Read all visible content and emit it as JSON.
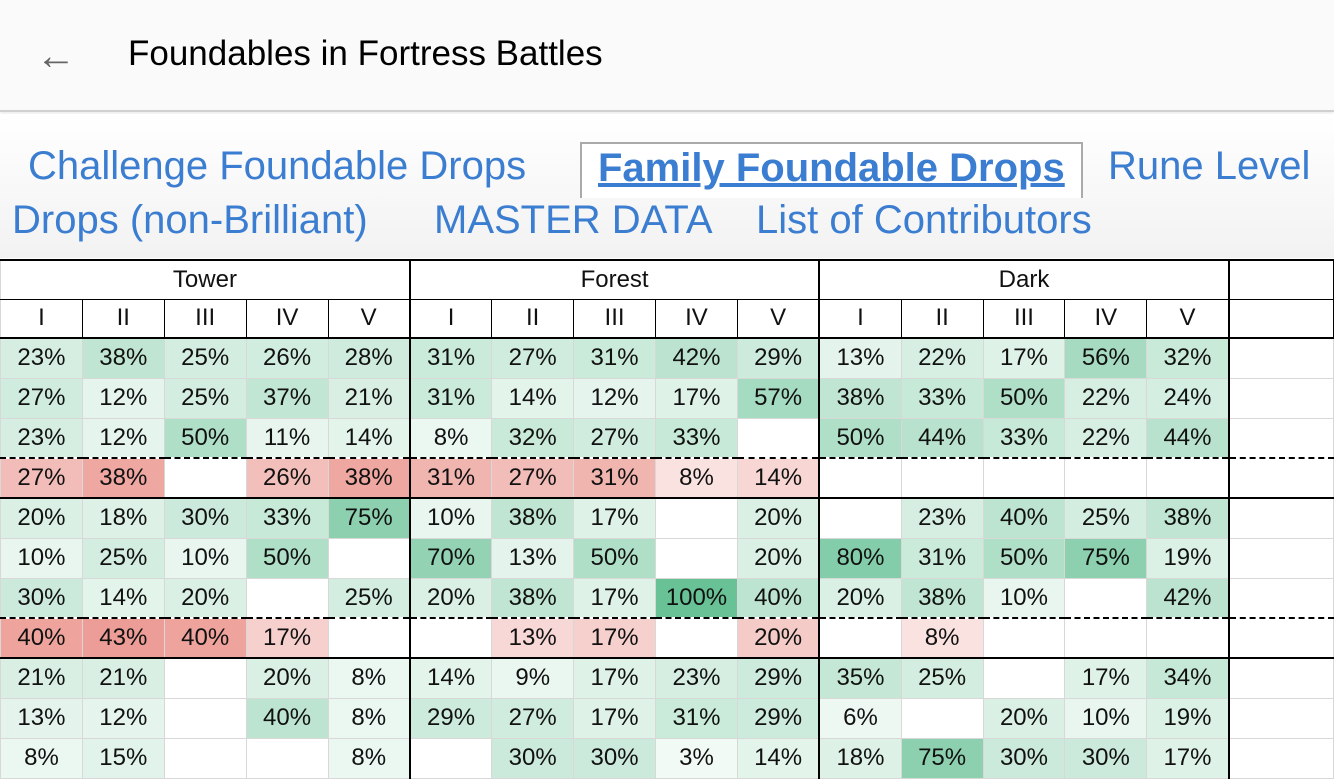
{
  "appbar": {
    "title": "Foundables in Fortress Battles",
    "back_icon": "arrow-left"
  },
  "tabs": [
    "Challenge Foundable Drops",
    "Family Foundable Drops",
    "Rune Level",
    "Drops (non-Brilliant)",
    "MASTER DATA",
    "List of Contributors"
  ],
  "active_tab": "Family Foundable Drops",
  "colors": {
    "green": "#57bb8a",
    "red": "#e67c73",
    "link": "#3b7dd0"
  },
  "table": {
    "groups": [
      "Tower",
      "Forest",
      "Dark"
    ],
    "levels": [
      "I",
      "II",
      "III",
      "IV",
      "V"
    ],
    "rows": [
      {
        "tone": "green",
        "border": "solid",
        "cells": [
          "23%",
          "38%",
          "25%",
          "26%",
          "28%",
          "31%",
          "27%",
          "31%",
          "42%",
          "29%",
          "13%",
          "22%",
          "17%",
          "56%",
          "32%"
        ]
      },
      {
        "tone": "green",
        "border": "none",
        "cells": [
          "27%",
          "12%",
          "25%",
          "37%",
          "21%",
          "31%",
          "14%",
          "12%",
          "17%",
          "57%",
          "38%",
          "33%",
          "50%",
          "22%",
          "24%"
        ]
      },
      {
        "tone": "green",
        "border": "none",
        "cells": [
          "23%",
          "12%",
          "50%",
          "11%",
          "14%",
          "8%",
          "32%",
          "27%",
          "33%",
          "",
          "50%",
          "44%",
          "33%",
          "22%",
          "44%"
        ]
      },
      {
        "tone": "red",
        "border": "dash",
        "cells": [
          "27%",
          "38%",
          "",
          "26%",
          "38%",
          "31%",
          "27%",
          "31%",
          "8%",
          "14%",
          "",
          "",
          "",
          "",
          ""
        ]
      },
      {
        "tone": "green",
        "border": "solid",
        "cells": [
          "20%",
          "18%",
          "30%",
          "33%",
          "75%",
          "10%",
          "38%",
          "17%",
          "",
          "20%",
          "",
          "23%",
          "40%",
          "25%",
          "38%"
        ]
      },
      {
        "tone": "green",
        "border": "none",
        "cells": [
          "10%",
          "25%",
          "10%",
          "50%",
          "",
          "70%",
          "13%",
          "50%",
          "",
          "20%",
          "80%",
          "31%",
          "50%",
          "75%",
          "19%"
        ]
      },
      {
        "tone": "green",
        "border": "none",
        "cells": [
          "30%",
          "14%",
          "20%",
          "",
          "25%",
          "20%",
          "38%",
          "17%",
          "100%",
          "40%",
          "20%",
          "38%",
          "10%",
          "",
          "42%"
        ]
      },
      {
        "tone": "red",
        "border": "dash",
        "cells": [
          "40%",
          "43%",
          "40%",
          "17%",
          "",
          "",
          "13%",
          "17%",
          "",
          "20%",
          "",
          "8%",
          "",
          "",
          ""
        ]
      },
      {
        "tone": "green",
        "border": "solid",
        "cells": [
          "21%",
          "21%",
          "",
          "20%",
          "8%",
          "14%",
          "9%",
          "17%",
          "23%",
          "29%",
          "35%",
          "25%",
          "",
          "17%",
          "34%"
        ]
      },
      {
        "tone": "green",
        "border": "none",
        "cells": [
          "13%",
          "12%",
          "",
          "40%",
          "8%",
          "29%",
          "27%",
          "17%",
          "31%",
          "29%",
          "6%",
          "",
          "20%",
          "10%",
          "19%"
        ]
      },
      {
        "tone": "green",
        "border": "none",
        "cells": [
          "8%",
          "15%",
          "",
          "",
          "8%",
          "",
          "30%",
          "30%",
          "3%",
          "14%",
          "18%",
          "75%",
          "30%",
          "30%",
          "17%"
        ]
      }
    ]
  }
}
